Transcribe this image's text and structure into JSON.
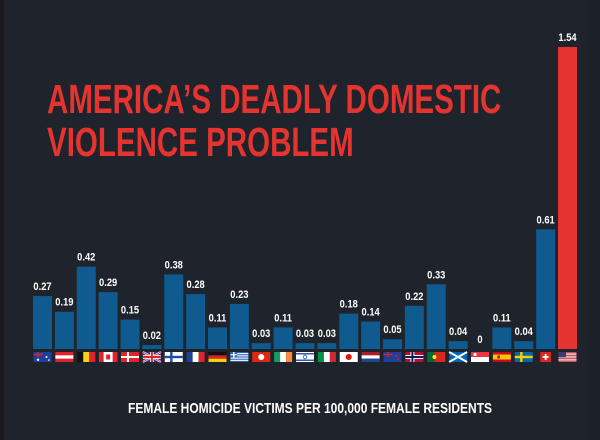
{
  "chart_data": {
    "type": "bar",
    "title": "AMERICA'S DEADLY DOMESTIC VIOLENCE PROBLEM",
    "title_lines": [
      "AMERICA’S DEADLY DOMESTIC",
      "VIOLENCE PROBLEM"
    ],
    "xlabel": "FEMALE HOMICIDE VICTIMS PER 100,000 FEMALE RESIDENTS",
    "ylabel": "",
    "ylim": [
      0,
      1.54
    ],
    "grid": false,
    "legend": "none",
    "categories": [
      "Australia",
      "Austria",
      "Belgium",
      "Canada",
      "Denmark",
      "United Kingdom",
      "Finland",
      "France",
      "Germany",
      "Greece",
      "Hong Kong",
      "Ireland",
      "Israel",
      "Italy",
      "Japan",
      "Netherlands",
      "New Zealand",
      "Norway",
      "Portugal",
      "Scotland",
      "Singapore",
      "Spain",
      "Sweden",
      "Switzerland",
      "United States"
    ],
    "flags": [
      "au",
      "at",
      "be",
      "ca",
      "dk",
      "gb",
      "fi",
      "fr",
      "de",
      "gr",
      "hk",
      "ie",
      "il",
      "it",
      "jp",
      "nl",
      "nz",
      "no",
      "pt",
      "sco",
      "sg",
      "es",
      "se",
      "ch",
      "us"
    ],
    "values": [
      0.27,
      0.19,
      0.42,
      0.29,
      0.15,
      0.02,
      0.38,
      0.28,
      0.11,
      0.23,
      0.03,
      0.11,
      0.03,
      0.03,
      0.18,
      0.14,
      0.05,
      0.22,
      0.33,
      0.04,
      0,
      0.11,
      0.04,
      0.61,
      1.54
    ],
    "value_labels": [
      "0.27",
      "0.19",
      "0.42",
      "0.29",
      "0.15",
      "0.02",
      "0.38",
      "0.28",
      "0.11",
      "0.23",
      "0.03",
      "0.11",
      "0.03",
      "0.03",
      "0.18",
      "0.14",
      "0.05",
      "0.22",
      "0.33",
      "0.04",
      "0",
      "0.11",
      "0.04",
      "0.61",
      "1.54"
    ],
    "highlight_category": "United States",
    "colors": {
      "bar": "#0f5a8e",
      "highlight": "#e53430",
      "title": "#e53430",
      "label": "#ffffff",
      "background": "#1f242c"
    }
  }
}
